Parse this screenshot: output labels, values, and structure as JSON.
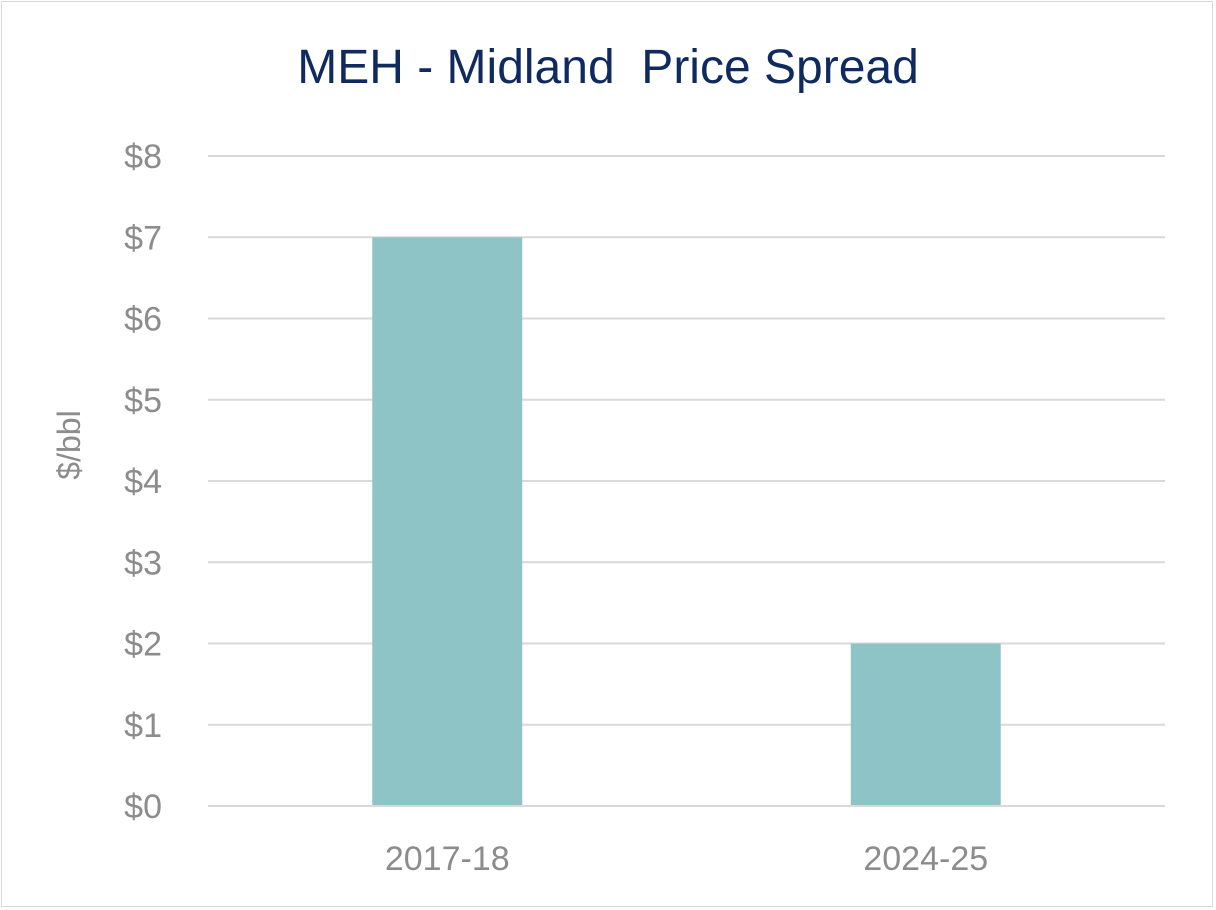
{
  "chart_data": {
    "type": "bar",
    "title": "MEH - Midland  Price Spread",
    "xlabel": "",
    "ylabel": "$/bbl",
    "categories": [
      "2017-18",
      "2024-25"
    ],
    "values": [
      7,
      2
    ],
    "ylim": [
      0,
      8
    ],
    "yticks": [
      0,
      1,
      2,
      3,
      4,
      5,
      6,
      7,
      8
    ],
    "ytick_labels": [
      "$0",
      "$1",
      "$2",
      "$3",
      "$4",
      "$5",
      "$6",
      "$7",
      "$8"
    ],
    "grid": true,
    "legend": "none",
    "colors": {
      "bar": "#8fc4c7",
      "grid": "#d9d9d9",
      "axis": "#d9d9d9",
      "text": "#8c8c8c",
      "title": "#0f2a5e"
    }
  }
}
